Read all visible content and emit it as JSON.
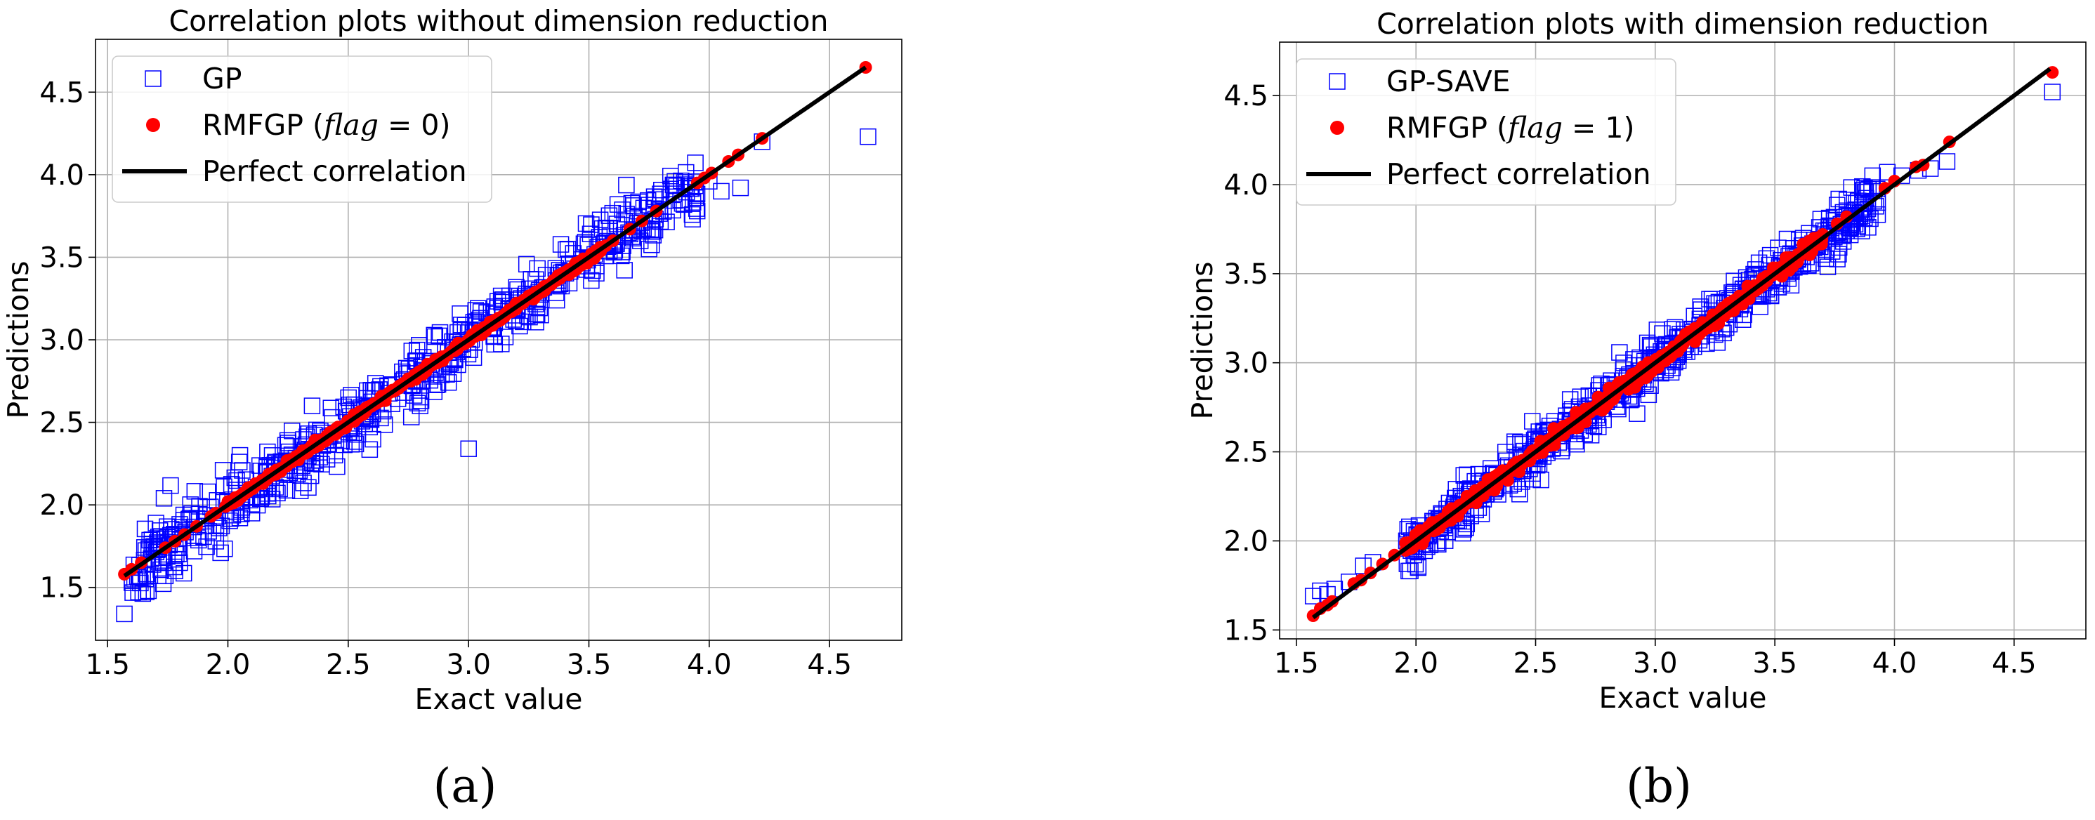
{
  "panels": [
    {
      "caption": "(a)",
      "chart_data": {
        "type": "scatter",
        "title": "Correlation plots without dimension reduction",
        "xlabel": "Exact value",
        "ylabel": "Predictions",
        "xlim": [
          1.45,
          4.8
        ],
        "ylim": [
          1.18,
          4.82
        ],
        "xticks": [
          1.5,
          2.0,
          2.5,
          3.0,
          3.5,
          4.0,
          4.5
        ],
        "yticks": [
          1.5,
          2.0,
          2.5,
          3.0,
          3.5,
          4.0,
          4.5
        ],
        "xtick_labels": [
          "1.5",
          "2.0",
          "2.5",
          "3.0",
          "3.5",
          "4.0",
          "4.5"
        ],
        "ytick_labels": [
          "1.5",
          "2.0",
          "2.5",
          "3.0",
          "3.5",
          "4.0",
          "4.5"
        ],
        "grid": true,
        "legend_position": "top-left",
        "series": [
          {
            "name": "GP",
            "marker": "open-square",
            "color": "#0000ff",
            "x": [
              1.57,
              1.63,
              1.67,
              1.74,
              1.78,
              1.8,
              1.86,
              1.95,
              1.97,
              1.98,
              2.05,
              2.1,
              2.35,
              3.0,
              3.3,
              3.62,
              3.75,
              3.95,
              4.0,
              4.05,
              4.13,
              4.22,
              4.66
            ],
            "y": [
              1.34,
              1.56,
              1.48,
              1.57,
              1.6,
              1.65,
              1.72,
              1.78,
              1.71,
              2.21,
              2.3,
              1.95,
              2.6,
              2.34,
              3.15,
              3.82,
              3.55,
              3.78,
              3.96,
              3.9,
              3.92,
              4.2,
              4.23
            ],
            "cloud": {
              "description": "dense band of points scattered about the perfect-correlation line",
              "count": 560,
              "x_range": [
                1.6,
                3.95
              ],
              "spread": 0.1
            }
          },
          {
            "name": "RMFGP (flag = 0)",
            "name_parts": {
              "before": "RMFGP (",
              "italic": "flag",
              "after": " = 0)"
            },
            "marker": "filled-circle",
            "color": "#ff0000",
            "x": [
              1.57,
              1.6,
              1.64,
              1.74,
              1.78,
              1.82,
              1.87,
              1.93,
              1.95,
              1.99,
              3.57,
              3.6,
              3.67,
              3.72,
              3.78,
              3.95,
              3.98,
              4.01,
              4.08,
              4.12,
              4.22,
              4.65
            ],
            "y": [
              1.58,
              1.61,
              1.65,
              1.74,
              1.78,
              1.82,
              1.87,
              1.93,
              1.95,
              1.99,
              3.57,
              3.6,
              3.67,
              3.72,
              3.78,
              3.95,
              3.98,
              4.01,
              4.08,
              4.12,
              4.22,
              4.65
            ],
            "cloud": {
              "count": 440,
              "x_range": [
                2.0,
                3.55
              ],
              "spread": 0.01
            }
          },
          {
            "name": "Perfect correlation",
            "marker": "line",
            "color": "#000000",
            "x": [
              1.57,
              4.65
            ],
            "y": [
              1.57,
              4.65
            ]
          }
        ]
      }
    },
    {
      "caption": "(b)",
      "chart_data": {
        "type": "scatter",
        "title": "Correlation plots with dimension reduction",
        "xlabel": "Exact value",
        "ylabel": "Predictions",
        "xlim": [
          1.43,
          4.8
        ],
        "ylim": [
          1.45,
          4.8
        ],
        "xticks": [
          1.5,
          2.0,
          2.5,
          3.0,
          3.5,
          4.0,
          4.5
        ],
        "yticks": [
          1.5,
          2.0,
          2.5,
          3.0,
          3.5,
          4.0,
          4.5
        ],
        "xtick_labels": [
          "1.5",
          "2.0",
          "2.5",
          "3.0",
          "3.5",
          "4.0",
          "4.5"
        ],
        "ytick_labels": [
          "1.5",
          "2.0",
          "2.5",
          "3.0",
          "3.5",
          "4.0",
          "4.5"
        ],
        "grid": true,
        "legend_position": "top-left",
        "series": [
          {
            "name": "GP-SAVE",
            "marker": "open-square",
            "color": "#0000ff",
            "x": [
              1.57,
              1.6,
              1.63,
              1.66,
              1.72,
              1.78,
              1.82,
              1.96,
              2.0,
              3.8,
              3.93,
              3.97,
              4.03,
              4.1,
              4.15,
              4.22,
              4.66
            ],
            "y": [
              1.69,
              1.72,
              1.7,
              1.73,
              1.77,
              1.86,
              1.88,
              2.0,
              1.97,
              3.74,
              3.9,
              4.07,
              4.05,
              4.08,
              4.09,
              4.13,
              4.52
            ],
            "cloud": {
              "description": "dense band of points scattered about the perfect-correlation line",
              "count": 620,
              "x_range": [
                1.95,
                3.95
              ],
              "spread": 0.07
            }
          },
          {
            "name": "RMFGP (flag = 1)",
            "name_parts": {
              "before": "RMFGP (",
              "italic": "flag",
              "after": " = 1)"
            },
            "marker": "filled-circle",
            "color": "#ff0000",
            "x": [
              1.57,
              1.6,
              1.63,
              1.65,
              1.74,
              1.77,
              1.81,
              1.86,
              1.91,
              3.7,
              3.76,
              3.8,
              3.96,
              4.0,
              4.09,
              4.12,
              4.23,
              4.66
            ],
            "y": [
              1.58,
              1.62,
              1.64,
              1.66,
              1.76,
              1.78,
              1.82,
              1.87,
              1.92,
              3.72,
              3.78,
              3.82,
              3.98,
              4.02,
              4.1,
              4.11,
              4.24,
              4.63
            ],
            "cloud": {
              "count": 480,
              "x_range": [
                1.95,
                3.7
              ],
              "spread": 0.02
            }
          },
          {
            "name": "Perfect correlation",
            "marker": "line",
            "color": "#000000",
            "x": [
              1.57,
              4.65
            ],
            "y": [
              1.57,
              4.65
            ]
          }
        ]
      }
    }
  ]
}
